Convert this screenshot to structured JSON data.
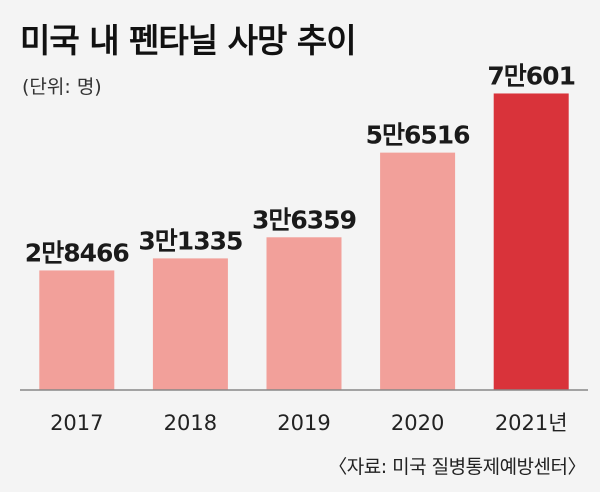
{
  "header": {
    "title": "미국 내 펜타닐 사망 추이",
    "unit": "(단위: 명)"
  },
  "footer": {
    "source": "〈자료: 미국 질병통제예방센터〉"
  },
  "colors": {
    "bar_default": "#f2a09a",
    "bar_highlight": "#d9333a",
    "background": "#f4f4f4",
    "axis": "#888888"
  },
  "chart_data": {
    "type": "bar",
    "title": "미국 내 펜타닐 사망 추이",
    "ylabel": "(단위: 명)",
    "xlabel": "",
    "categories": [
      "2017",
      "2018",
      "2019",
      "2020",
      "2021년"
    ],
    "values": [
      28466,
      31335,
      36359,
      56516,
      70601
    ],
    "value_labels": [
      "2만8466",
      "3만1335",
      "3만6359",
      "5만6516",
      "7만601"
    ],
    "highlight_index": 4,
    "ylim": [
      0,
      80000
    ],
    "grid": false
  }
}
